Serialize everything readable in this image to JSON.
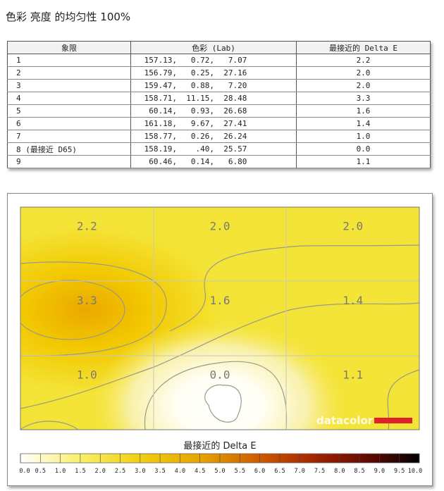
{
  "title": "色彩 亮度 的均匀性 100%",
  "table": {
    "headers": [
      "象限",
      "色彩 (Lab)",
      "最接近的 Delta E"
    ],
    "rows": [
      {
        "q": "1",
        "lab": " 157.13,   0.72,   7.07",
        "de": "2.2"
      },
      {
        "q": "2",
        "lab": " 156.79,   0.25,  27.16",
        "de": "2.0"
      },
      {
        "q": "3",
        "lab": " 159.47,   0.88,   7.20",
        "de": "2.0"
      },
      {
        "q": "4",
        "lab": " 158.71,  11.15,  28.48",
        "de": "3.3"
      },
      {
        "q": "5",
        "lab": "  60.14,   0.93,  26.68",
        "de": "1.6"
      },
      {
        "q": "6",
        "lab": " 161.18,   9.67,  27.41",
        "de": "1.4"
      },
      {
        "q": "7",
        "lab": " 158.77,   0.26,  26.24",
        "de": "1.0"
      },
      {
        "q": "8 (最接近 D65)",
        "lab": " 158.19,    .40,  25.57",
        "de": "0.0"
      },
      {
        "q": "9",
        "lab": "  60.46,   0.14,   6.80",
        "de": "1.1"
      }
    ]
  },
  "chart_data": {
    "type": "heatmap",
    "rows": 3,
    "cols": 3,
    "values": [
      [
        2.2,
        2.0,
        2.0
      ],
      [
        3.3,
        1.6,
        1.4
      ],
      [
        1.0,
        0.0,
        1.1
      ]
    ],
    "labels": [
      [
        "2.2",
        "2.0",
        "2.0"
      ],
      [
        "3.3",
        "1.6",
        "1.4"
      ],
      [
        "1.0",
        "0.0",
        "1.1"
      ]
    ],
    "colorbar_title": "最接近的 Delta E",
    "colorbar_range": [
      0,
      10
    ],
    "colorbar_ticks": [
      "0.0",
      "0.5",
      "1.0",
      "1.5",
      "2.0",
      "2.5",
      "3.0",
      "3.5",
      "4.0",
      "4.5",
      "5.0",
      "5.5",
      "6.0",
      "6.5",
      "7.0",
      "7.5",
      "8.0",
      "8.5",
      "9.0",
      "9.5",
      "10.0"
    ],
    "colors": {
      "low": "#ffffff",
      "mid": "#f5e62a",
      "high": "#e0a000",
      "max": "#000000"
    }
  },
  "watermark": "datacolor"
}
